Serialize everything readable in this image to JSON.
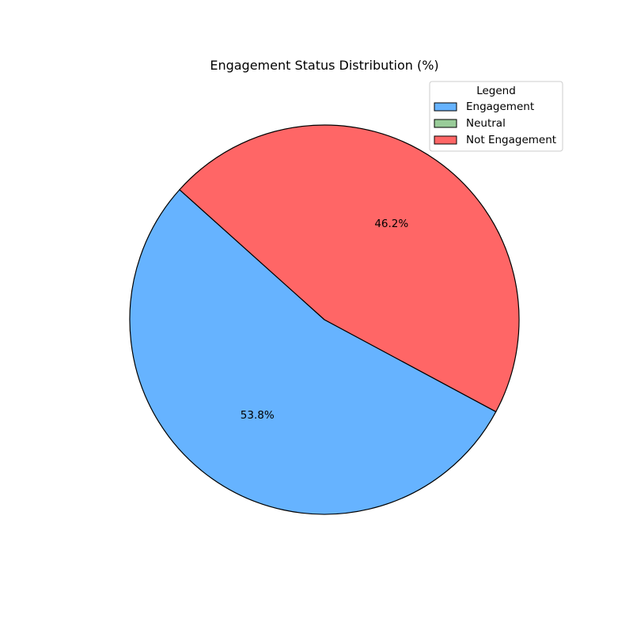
{
  "chart_data": {
    "type": "pie",
    "title": "Engagement Status Distribution (%)",
    "legend_title": "Legend",
    "legend_position": "top-right",
    "start_angle_deg": 138.1,
    "direction": "counterclockwise",
    "slices": [
      {
        "name": "Engagement",
        "value": 53.8,
        "label": "53.8%",
        "color": "#66b3ff"
      },
      {
        "name": "Neutral",
        "value": 0.0,
        "label": "",
        "color": "#99cc99"
      },
      {
        "name": "Not Engagement",
        "value": 46.2,
        "label": "46.2%",
        "color": "#ff6666"
      }
    ]
  }
}
